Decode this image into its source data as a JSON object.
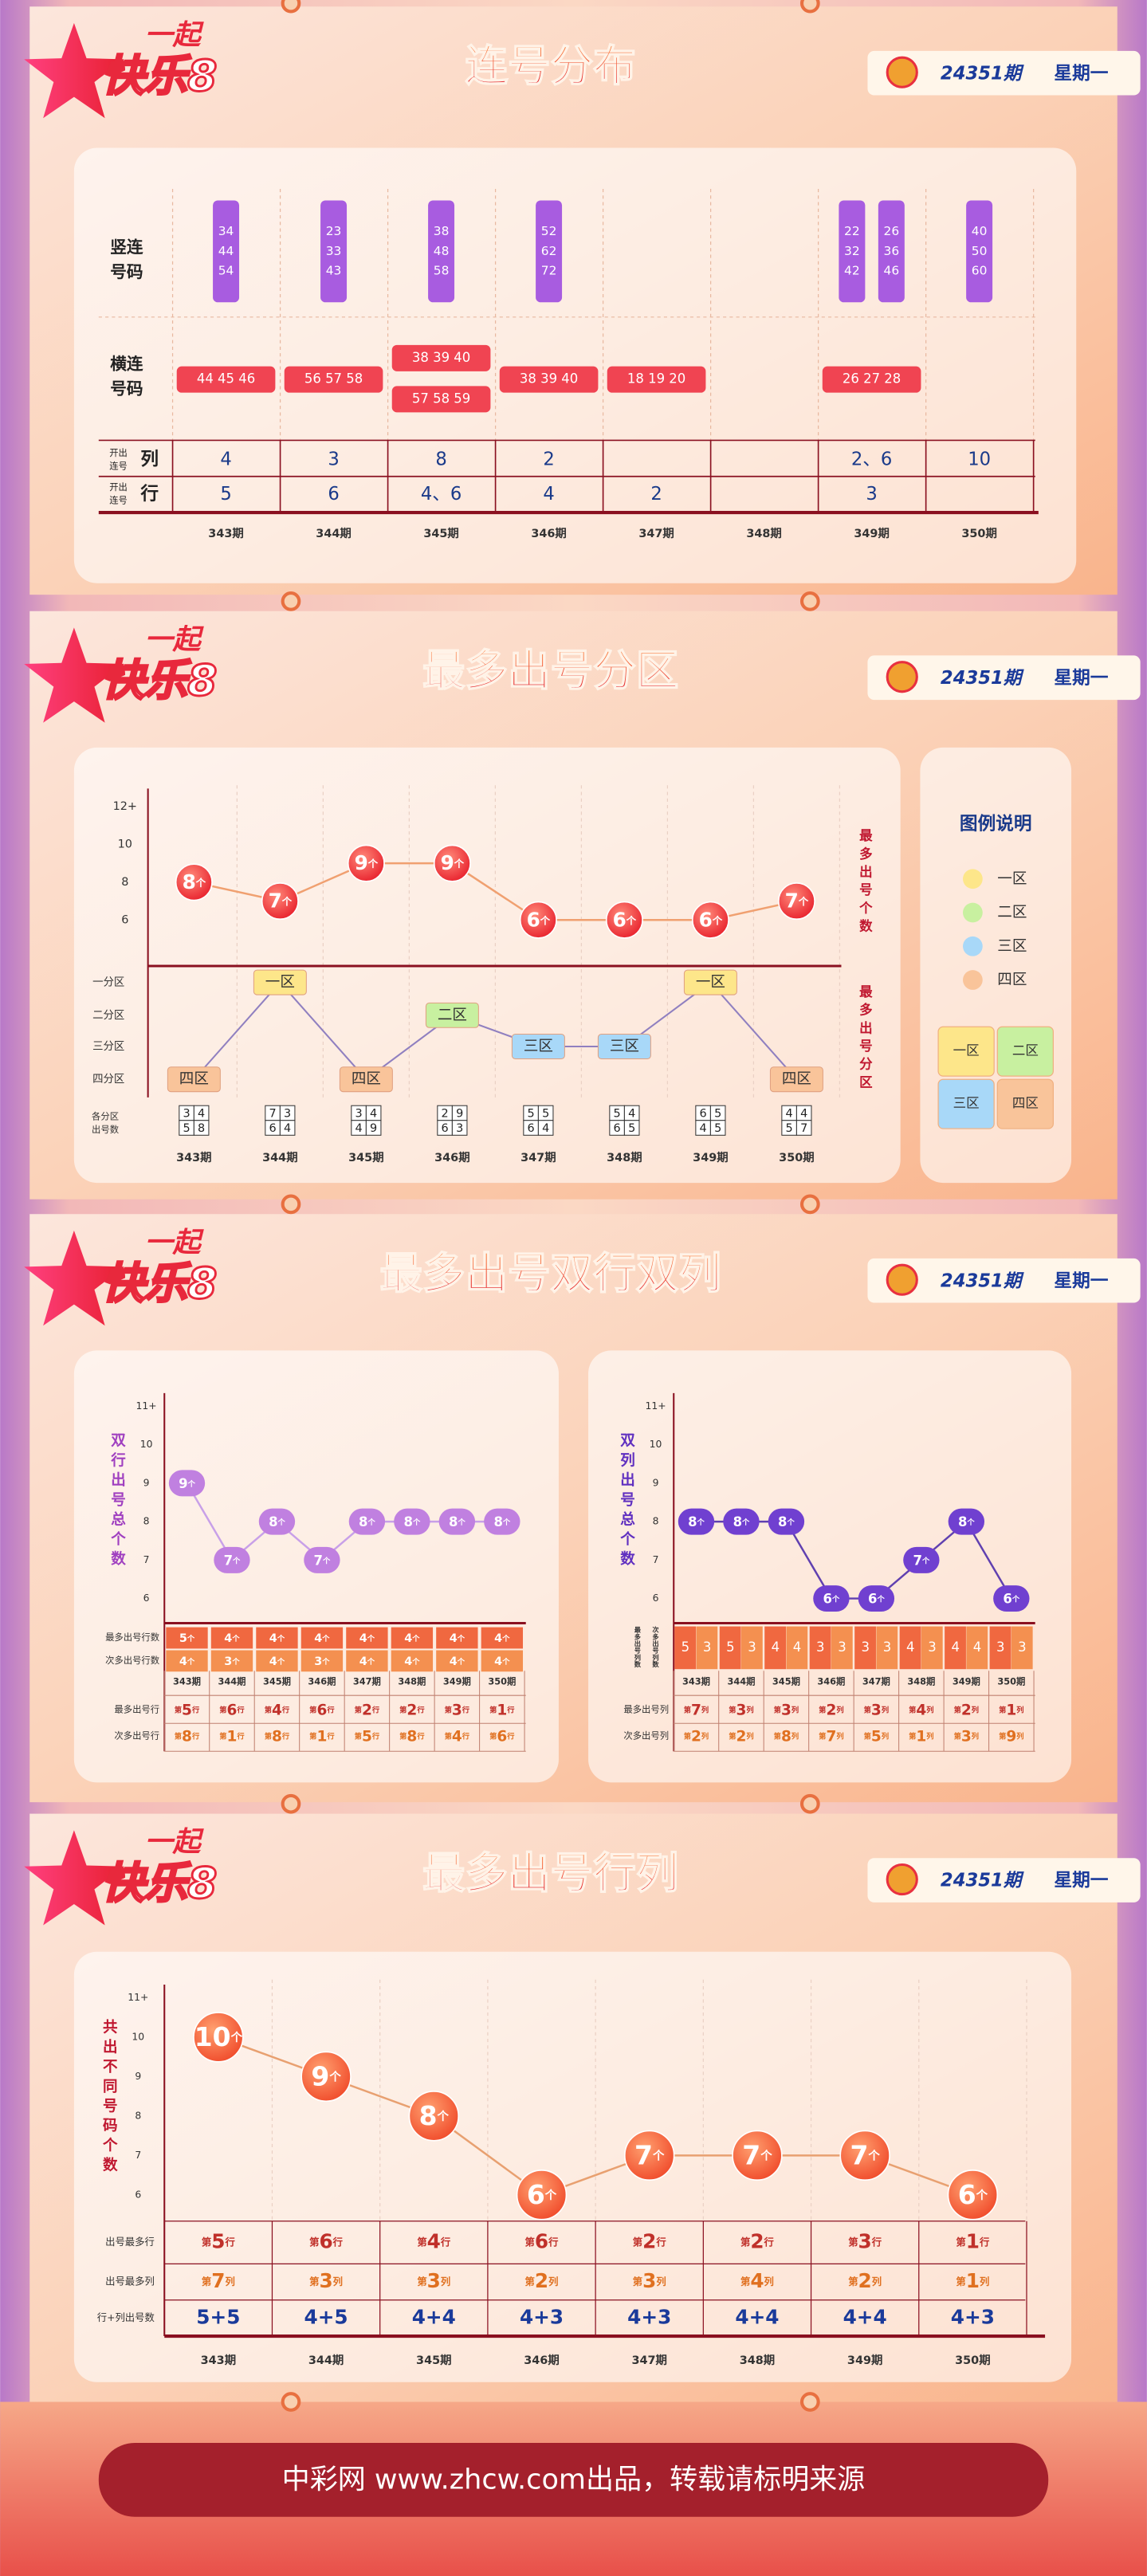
{
  "header": {
    "logo_top": "一起",
    "logo_main": "快乐8",
    "period": "24351期",
    "weekday": "星期一"
  },
  "footer": "中彩网 www.zhcw.com出品，转载请标明来源",
  "chart_data": [
    {
      "type": "table",
      "title": "连号分布",
      "row_labels": {
        "vertical": "竖连号码",
        "horizontal": "横连号码",
        "open_prefix": "开出连号",
        "column": "列",
        "row": "行"
      },
      "categories": [
        "343期",
        "344期",
        "345期",
        "346期",
        "347期",
        "348期",
        "349期",
        "350期"
      ],
      "vertical_runs": [
        [
          [
            "34",
            "44",
            "54"
          ]
        ],
        [
          [
            "23",
            "33",
            "43"
          ]
        ],
        [
          [
            "38",
            "48",
            "58"
          ]
        ],
        [
          [
            "52",
            "62",
            "72"
          ]
        ],
        [],
        [],
        [
          [
            "22",
            "32",
            "42"
          ],
          [
            "26",
            "36",
            "46"
          ]
        ],
        [
          [
            "40",
            "50",
            "60"
          ]
        ]
      ],
      "horizontal_runs": [
        [
          "44 45 46"
        ],
        [
          "56 57 58"
        ],
        [
          "38 39 40",
          "57 58 59"
        ],
        [
          "38 39 40"
        ],
        [
          "18 19 20"
        ],
        [],
        [
          "26 27 28"
        ],
        []
      ],
      "column_counts": [
        "4",
        "3",
        "8",
        "2",
        null,
        null,
        "2、6",
        "10"
      ],
      "row_counts": [
        "5",
        "6",
        "4、6",
        "4",
        "2",
        null,
        "3",
        null
      ]
    },
    {
      "type": "line",
      "title": "最多出号分区",
      "y_label": "最多出号个数",
      "categories": [
        "343期",
        "344期",
        "345期",
        "346期",
        "347期",
        "348期",
        "349期",
        "350期"
      ],
      "values": [
        8,
        7,
        9,
        9,
        6,
        6,
        6,
        7
      ],
      "value_labels": [
        "8个",
        "7个",
        "9个",
        "9个",
        "6个",
        "6个",
        "6个",
        "7个"
      ],
      "color": "#f07850",
      "ylim": [
        6,
        12
      ],
      "yticks": [
        6,
        8,
        10,
        {
          "value": 12,
          "label": "12+"
        }
      ],
      "zone_axis_label": "最多出号分区",
      "zone_levels": [
        "一分区",
        "二分区",
        "三分区",
        "四分区"
      ],
      "zones": [
        "四区",
        "一区",
        "四区",
        "二区",
        "三区",
        "三区",
        "一区",
        "四区"
      ],
      "zone_counts_label": "各分区出号数",
      "zone_counts": [
        [
          "3",
          "4",
          "5",
          "8"
        ],
        [
          "7",
          "3",
          "6",
          "4"
        ],
        [
          "3",
          "4",
          "4",
          "9"
        ],
        [
          "2",
          "9",
          "6",
          "3"
        ],
        [
          "5",
          "5",
          "6",
          "4"
        ],
        [
          "5",
          "4",
          "6",
          "5"
        ],
        [
          "6",
          "5",
          "4",
          "5"
        ],
        [
          "4",
          "4",
          "5",
          "7"
        ]
      ],
      "legend": {
        "title": "图例说明",
        "items": [
          {
            "name": "一区",
            "color": "#fde68a"
          },
          {
            "name": "二区",
            "color": "#c8f0a0"
          },
          {
            "name": "三区",
            "color": "#a8d8f8"
          },
          {
            "name": "四区",
            "color": "#f9c49a"
          }
        ]
      }
    },
    {
      "type": "line",
      "title": "最多出号双行双列",
      "y_label": "双行出号总个数",
      "categories": [
        "343期",
        "344期",
        "345期",
        "346期",
        "347期",
        "348期",
        "349期",
        "350期"
      ],
      "values": [
        9,
        7,
        8,
        7,
        8,
        8,
        8,
        8
      ],
      "value_labels": [
        "9个",
        "7个",
        "8个",
        "7个",
        "8个",
        "8个",
        "8个",
        "8个"
      ],
      "color": "#c080e0",
      "ylim": [
        6,
        11
      ],
      "yticks": [
        6,
        7,
        8,
        9,
        10,
        {
          "value": 11,
          "label": "11+"
        }
      ],
      "table": {
        "row_labels": [
          "最多出号行数",
          "次多出号行数",
          "最多出号行",
          "次多出号行"
        ],
        "rows": [
          [
            "5个",
            "4个",
            "4个",
            "4个",
            "4个",
            "4个",
            "4个",
            "4个"
          ],
          [
            "4个",
            "3个",
            "4个",
            "3个",
            "4个",
            "4个",
            "4个",
            "4个"
          ],
          [
            "第5行",
            "第6行",
            "第4行",
            "第6行",
            "第2行",
            "第2行",
            "第3行",
            "第1行"
          ],
          [
            "第8行",
            "第1行",
            "第8行",
            "第1行",
            "第5行",
            "第8行",
            "第4行",
            "第6行"
          ]
        ]
      }
    },
    {
      "type": "line",
      "y_label": "双列出号总个数",
      "categories": [
        "343期",
        "344期",
        "345期",
        "346期",
        "347期",
        "348期",
        "349期",
        "350期"
      ],
      "values": [
        8,
        8,
        8,
        6,
        6,
        7,
        8,
        6
      ],
      "value_labels": [
        "8个",
        "8个",
        "8个",
        "6个",
        "6个",
        "7个",
        "8个",
        "6个"
      ],
      "color": "#7040d0",
      "ylim": [
        6,
        11
      ],
      "yticks": [
        6,
        7,
        8,
        9,
        10,
        {
          "value": 11,
          "label": "11+"
        }
      ],
      "table": {
        "row_labels": [
          "最多出号列数",
          "次多出号列数",
          "最多出号列",
          "次多出号列"
        ],
        "rows": [
          [
            "5",
            "5",
            "4",
            "3",
            "3",
            "4",
            "4",
            "3"
          ],
          [
            "3",
            "3",
            "4",
            "3",
            "3",
            "3",
            "4",
            "3"
          ],
          [
            "第7列",
            "第3列",
            "第3列",
            "第2列",
            "第3列",
            "第4列",
            "第2列",
            "第1列"
          ],
          [
            "第2列",
            "第2列",
            "第8列",
            "第7列",
            "第5列",
            "第1列",
            "第3列",
            "第9列"
          ]
        ]
      }
    },
    {
      "type": "line",
      "title": "最多出号行列",
      "y_label": "共出不同号码个数",
      "categories": [
        "343期",
        "344期",
        "345期",
        "346期",
        "347期",
        "348期",
        "349期",
        "350期"
      ],
      "values": [
        10,
        9,
        8,
        6,
        7,
        7,
        7,
        6
      ],
      "value_labels": [
        "10个",
        "9个",
        "8个",
        "6个",
        "7个",
        "7个",
        "7个",
        "6个"
      ],
      "color": "#f06040",
      "ylim": [
        6,
        11
      ],
      "yticks": [
        6,
        7,
        8,
        9,
        10,
        {
          "value": 11,
          "label": "11+"
        }
      ],
      "table": {
        "row_labels": [
          "出号最多行",
          "出号最多列",
          "行+列出号数"
        ],
        "rows": [
          [
            "第5行",
            "第6行",
            "第4行",
            "第6行",
            "第2行",
            "第2行",
            "第3行",
            "第1行"
          ],
          [
            "第7列",
            "第3列",
            "第3列",
            "第2列",
            "第3列",
            "第4列",
            "第2列",
            "第1列"
          ],
          [
            "5+5",
            "4+5",
            "4+4",
            "4+3",
            "4+3",
            "4+4",
            "4+4",
            "4+3"
          ]
        ]
      }
    }
  ]
}
